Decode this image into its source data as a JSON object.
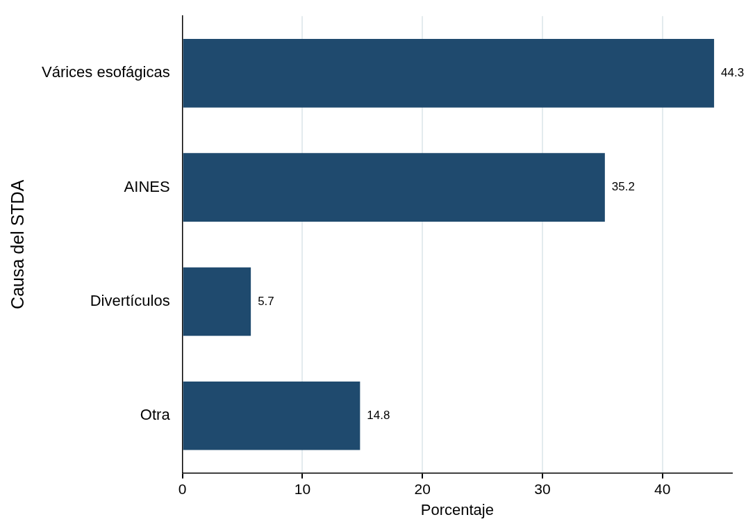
{
  "chart_data": {
    "type": "bar",
    "orientation": "horizontal",
    "xlabel": "Porcentaje",
    "ylabel": "Causa del STDA",
    "categories": [
      "Várices esofágicas",
      "AINES",
      "Divertículos",
      "Otra"
    ],
    "values": [
      44.3,
      35.2,
      5.7,
      14.8
    ],
    "color": "#1f4a6e",
    "xlim": [
      0,
      45.8
    ],
    "xticks": [
      0,
      10,
      20,
      30,
      40
    ],
    "grid": "x",
    "data_labels": true
  }
}
